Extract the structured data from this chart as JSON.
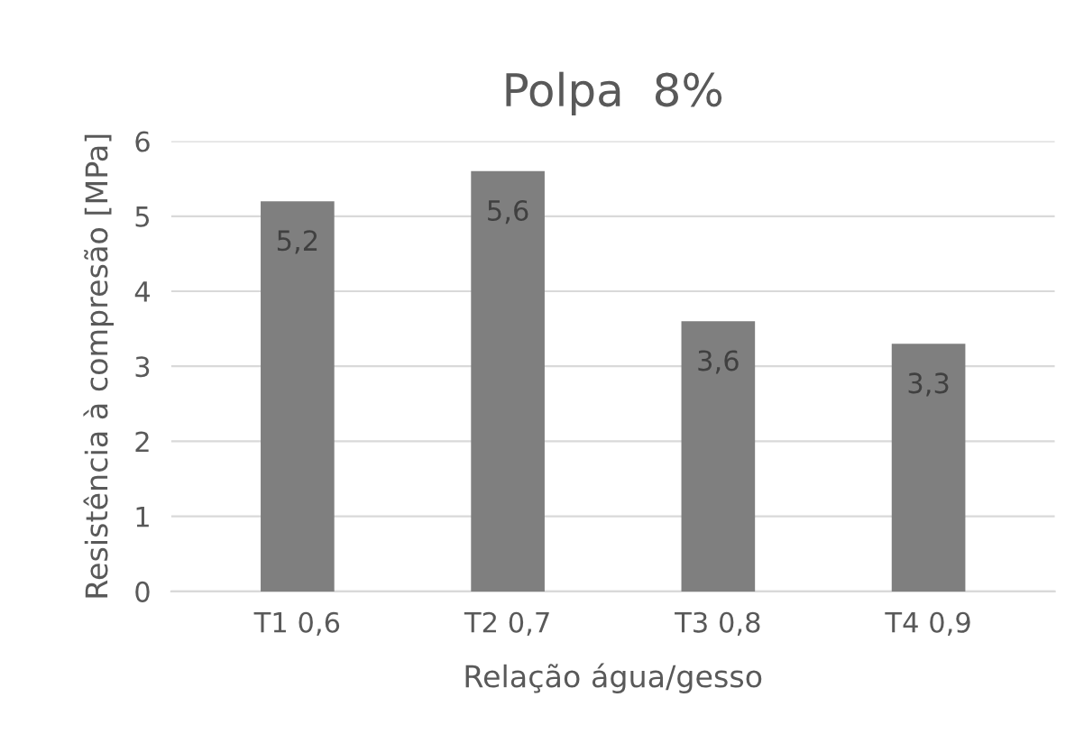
{
  "chart_data": {
    "type": "bar",
    "title": "Polpa  8%",
    "xlabel": "Relação água/gesso",
    "ylabel": "Resistência à compresão [MPa]",
    "categories": [
      "T1 0,6",
      "T2 0,7",
      "T3 0,8",
      "T4 0,9"
    ],
    "values": [
      5.2,
      5.6,
      3.6,
      3.3
    ],
    "value_labels": [
      "5,2",
      "5,6",
      "3,6",
      "3,3"
    ],
    "color": "#7f7f7f",
    "ylim": [
      0,
      6
    ],
    "yticks": [
      0,
      1,
      2,
      3,
      4,
      5,
      6
    ],
    "grid": "y"
  }
}
